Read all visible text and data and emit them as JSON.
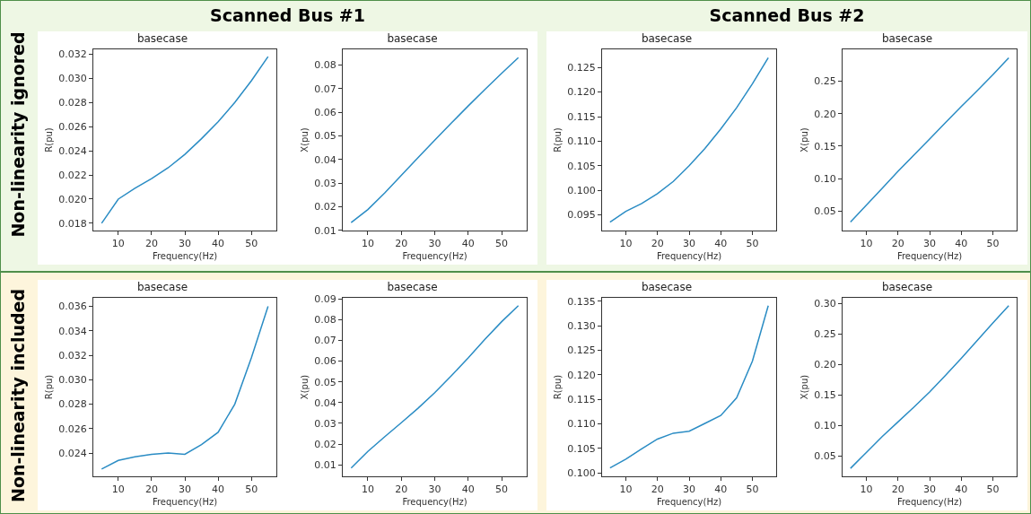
{
  "chart_data": [
    {
      "type": "line",
      "title": "basecase",
      "xlabel": "Frequency(Hz)",
      "ylabel": "R(pu)",
      "annotations": [
        "Scanned Bus #1",
        "Non-linearity ignored"
      ],
      "x": [
        5,
        10,
        15,
        20,
        25,
        30,
        35,
        40,
        45,
        50,
        55
      ],
      "series": [
        {
          "color": "#2a8cc4",
          "values": [
            0.018,
            0.02,
            0.0209,
            0.0217,
            0.0226,
            0.0237,
            0.025,
            0.0264,
            0.028,
            0.0298,
            0.0318
          ]
        }
      ],
      "xlim": [
        2.5,
        57.5
      ],
      "xticks": [
        10,
        20,
        30,
        40,
        50
      ],
      "ylim": [
        0.0174,
        0.0324
      ],
      "yticks": [
        0.018,
        {
          "value": 0.02,
          "label": "0.020"
        },
        0.022,
        0.024,
        0.026,
        0.028,
        {
          "value": 0.03,
          "label": "0.030"
        },
        0.032
      ]
    },
    {
      "type": "line",
      "title": "basecase",
      "xlabel": "Frequency(Hz)",
      "ylabel": "X(pu)",
      "x": [
        5,
        10,
        15,
        20,
        25,
        30,
        35,
        40,
        45,
        50,
        55
      ],
      "series": [
        {
          "color": "#2a8cc4",
          "values": [
            0.0133,
            0.0188,
            0.0258,
            0.0333,
            0.0408,
            0.0482,
            0.0555,
            0.0627,
            0.0697,
            0.0765,
            0.0832
          ]
        }
      ],
      "xlim": [
        2.5,
        57.5
      ],
      "xticks": [
        10,
        20,
        30,
        40,
        50
      ],
      "ylim": [
        0.0099,
        0.0867
      ],
      "yticks": [
        0.01,
        0.02,
        0.03,
        0.04,
        0.05,
        0.06,
        0.07,
        0.08
      ]
    },
    {
      "type": "line",
      "title": "basecase",
      "xlabel": "Frequency(Hz)",
      "ylabel": "R(pu)",
      "annotations": [
        "Scanned Bus #2"
      ],
      "x": [
        5,
        10,
        15,
        20,
        25,
        30,
        35,
        40,
        45,
        50,
        55
      ],
      "series": [
        {
          "color": "#2a8cc4",
          "values": [
            0.0935,
            0.0957,
            0.0973,
            0.0993,
            0.1018,
            0.105,
            0.1085,
            0.1125,
            0.1168,
            0.1217,
            0.127
          ]
        }
      ],
      "xlim": [
        2.5,
        57.5
      ],
      "xticks": [
        10,
        20,
        30,
        40,
        50
      ],
      "ylim": [
        0.0918,
        0.1287
      ],
      "yticks": [
        0.095,
        {
          "value": 0.1,
          "label": "0.100"
        },
        0.105,
        {
          "value": 0.11,
          "label": "0.110"
        },
        0.115,
        {
          "value": 0.12,
          "label": "0.120"
        },
        0.125
      ]
    },
    {
      "type": "line",
      "title": "basecase",
      "xlabel": "Frequency(Hz)",
      "ylabel": "X(pu)",
      "x": [
        5,
        10,
        15,
        20,
        25,
        30,
        35,
        40,
        45,
        50,
        55
      ],
      "series": [
        {
          "color": "#2a8cc4",
          "values": [
            0.033,
            0.059,
            0.085,
            0.111,
            0.136,
            0.161,
            0.186,
            0.211,
            0.235,
            0.26,
            0.286
          ]
        }
      ],
      "xlim": [
        2.5,
        57.5
      ],
      "xticks": [
        10,
        20,
        30,
        40,
        50
      ],
      "ylim": [
        0.02,
        0.299
      ],
      "yticks": [
        0.05,
        {
          "value": 0.1,
          "label": "0.10"
        },
        0.15,
        {
          "value": 0.2,
          "label": "0.20"
        },
        0.25
      ]
    },
    {
      "type": "line",
      "title": "basecase",
      "xlabel": "Frequency(Hz)",
      "ylabel": "R(pu)",
      "annotations": [
        "Non-linearity included"
      ],
      "x": [
        5,
        10,
        15,
        20,
        25,
        30,
        35,
        40,
        45,
        50,
        55
      ],
      "series": [
        {
          "color": "#2a8cc4",
          "values": [
            0.0227,
            0.0234,
            0.0237,
            0.0239,
            0.024,
            0.0239,
            0.0247,
            0.0257,
            0.028,
            0.0318,
            0.036
          ]
        }
      ],
      "xlim": [
        2.5,
        57.5
      ],
      "xticks": [
        10,
        20,
        30,
        40,
        50
      ],
      "ylim": [
        0.0221,
        0.0367
      ],
      "yticks": [
        0.024,
        0.026,
        0.028,
        {
          "value": 0.03,
          "label": "0.030"
        },
        0.032,
        0.034,
        0.036
      ]
    },
    {
      "type": "line",
      "title": "basecase",
      "xlabel": "Frequency(Hz)",
      "ylabel": "X(pu)",
      "x": [
        5,
        10,
        15,
        20,
        25,
        30,
        35,
        40,
        45,
        50,
        55
      ],
      "series": [
        {
          "color": "#2a8cc4",
          "values": [
            0.0085,
            0.0165,
            0.0235,
            0.0303,
            0.0373,
            0.0448,
            0.053,
            0.0615,
            0.0705,
            0.079,
            0.0867
          ]
        }
      ],
      "xlim": [
        2.5,
        57.5
      ],
      "xticks": [
        10,
        20,
        30,
        40,
        50
      ],
      "ylim": [
        0.0045,
        0.0905
      ],
      "yticks": [
        0.01,
        0.02,
        0.03,
        0.04,
        0.05,
        0.06,
        0.07,
        0.08,
        0.09
      ]
    },
    {
      "type": "line",
      "title": "basecase",
      "xlabel": "Frequency(Hz)",
      "ylabel": "R(pu)",
      "x": [
        5,
        10,
        15,
        20,
        25,
        30,
        35,
        40,
        45,
        50,
        55
      ],
      "series": [
        {
          "color": "#2a8cc4",
          "values": [
            0.101,
            0.1028,
            0.1049,
            0.1069,
            0.1081,
            0.1085,
            0.1101,
            0.1117,
            0.1153,
            0.1228,
            0.1341
          ]
        }
      ],
      "xlim": [
        2.5,
        57.5
      ],
      "xticks": [
        10,
        20,
        30,
        40,
        50
      ],
      "ylim": [
        0.0993,
        0.1357
      ],
      "yticks": [
        {
          "value": 0.1,
          "label": "0.100"
        },
        0.105,
        {
          "value": 0.11,
          "label": "0.110"
        },
        0.115,
        {
          "value": 0.12,
          "label": "0.120"
        },
        0.125,
        {
          "value": 0.13,
          "label": "0.130"
        },
        0.135
      ]
    },
    {
      "type": "line",
      "title": "basecase",
      "xlabel": "Frequency(Hz)",
      "ylabel": "X(pu)",
      "x": [
        5,
        10,
        15,
        20,
        25,
        30,
        35,
        40,
        45,
        50,
        55
      ],
      "series": [
        {
          "color": "#2a8cc4",
          "values": [
            0.03,
            0.056,
            0.082,
            0.106,
            0.13,
            0.155,
            0.182,
            0.21,
            0.239,
            0.268,
            0.296
          ]
        }
      ],
      "xlim": [
        2.5,
        57.5
      ],
      "xticks": [
        10,
        20,
        30,
        40,
        50
      ],
      "ylim": [
        0.017,
        0.309
      ],
      "yticks": [
        0.05,
        {
          "value": 0.1,
          "label": "0.10"
        },
        0.15,
        {
          "value": 0.2,
          "label": "0.20"
        },
        0.25,
        {
          "value": 0.3,
          "label": "0.30"
        }
      ]
    }
  ]
}
